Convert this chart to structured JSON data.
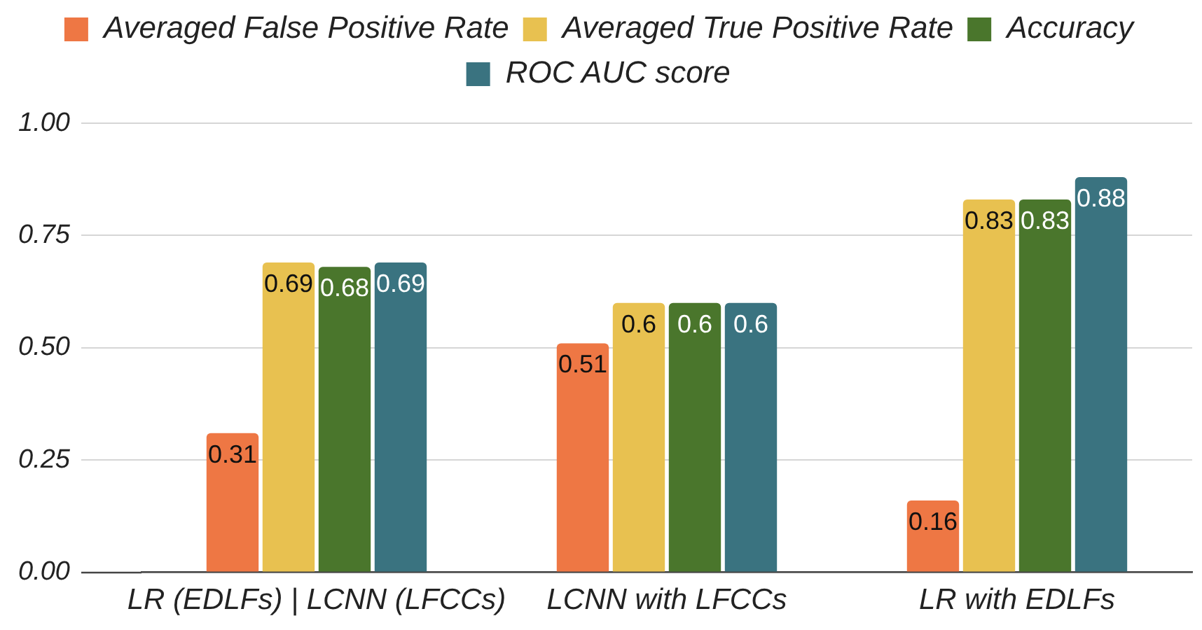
{
  "chart_data": {
    "type": "bar",
    "categories": [
      "LR (EDLFs) | LCNN (LFCCs)",
      "LCNN with LFCCs",
      "LR with EDLFs"
    ],
    "series": [
      {
        "name": "Averaged False Positive Rate",
        "color": "#ee7744",
        "values": [
          0.31,
          0.51,
          0.16
        ]
      },
      {
        "name": "Averaged True Positive Rate",
        "color": "#e8c150",
        "values": [
          0.69,
          0.6,
          0.83
        ]
      },
      {
        "name": "Accuracy",
        "color": "#4a762c",
        "values": [
          0.68,
          0.6,
          0.83
        ]
      },
      {
        "name": "ROC AUC score",
        "color": "#3a7380",
        "values": [
          0.69,
          0.6,
          0.88
        ]
      }
    ],
    "ylim": [
      0,
      1
    ],
    "yticks": [
      {
        "value": 0,
        "label": "0.00"
      },
      {
        "value": 0.25,
        "label": "0.25"
      },
      {
        "value": 0.5,
        "label": "0.50"
      },
      {
        "value": 0.75,
        "label": "0.75"
      },
      {
        "value": 1,
        "label": "1.00"
      }
    ],
    "grid": "y",
    "legend": "top",
    "data_labels": true
  }
}
